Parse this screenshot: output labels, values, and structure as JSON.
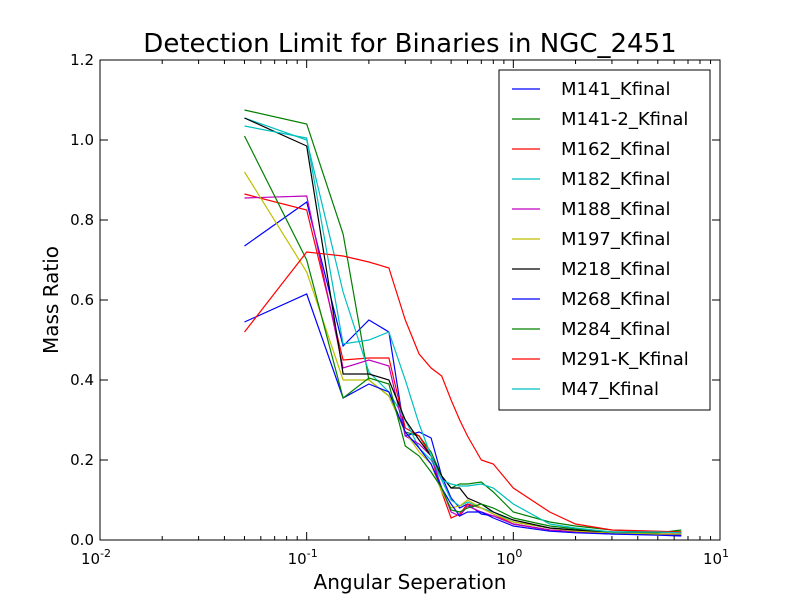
{
  "chart_data": {
    "type": "line",
    "title": "Detection Limit for Binaries in NGC_2451",
    "xlabel": "Angular Seperation",
    "ylabel": "Mass Ratio",
    "xscale": "log",
    "xlim": [
      0.01,
      10
    ],
    "ylim": [
      0.0,
      1.2
    ],
    "x_tick_labels": [
      {
        "value": 0.01,
        "base": "10",
        "exp": "-2"
      },
      {
        "value": 0.1,
        "base": "10",
        "exp": "-1"
      },
      {
        "value": 1,
        "base": "10",
        "exp": "0"
      },
      {
        "value": 10,
        "base": "10",
        "exp": "1"
      }
    ],
    "y_ticks": [
      0.0,
      0.2,
      0.4,
      0.6,
      0.8,
      1.0,
      1.2
    ],
    "y_tick_labels": [
      "0.0",
      "0.2",
      "0.4",
      "0.6",
      "0.8",
      "1.0",
      "1.2"
    ],
    "legend_position": "top-right",
    "grid": false,
    "series": [
      {
        "name": "M141_Kfinal",
        "color": "#0000ff",
        "x": [
          0.05,
          0.1,
          0.15,
          0.2,
          0.25,
          0.3,
          0.35,
          0.4,
          0.45,
          0.5,
          0.55,
          0.6,
          0.7,
          0.8,
          1.0,
          1.5,
          2.0,
          3.0,
          5.0,
          6.5
        ],
        "y": [
          0.735,
          0.845,
          0.485,
          0.55,
          0.52,
          0.26,
          0.27,
          0.255,
          0.16,
          0.105,
          0.08,
          0.09,
          0.065,
          0.06,
          0.04,
          0.025,
          0.02,
          0.015,
          0.015,
          0.012
        ]
      },
      {
        "name": "M141-2_Kfinal",
        "color": "#008000",
        "x": [
          0.05,
          0.1,
          0.15,
          0.2,
          0.25,
          0.3,
          0.35,
          0.4,
          0.45,
          0.5,
          0.55,
          0.6,
          0.7,
          0.8,
          1.0,
          1.5,
          2.0,
          3.0,
          5.0,
          6.5
        ],
        "y": [
          1.075,
          1.04,
          0.765,
          0.4,
          0.36,
          0.27,
          0.26,
          0.22,
          0.16,
          0.13,
          0.14,
          0.14,
          0.145,
          0.12,
          0.07,
          0.045,
          0.035,
          0.025,
          0.02,
          0.02
        ]
      },
      {
        "name": "M162_Kfinal",
        "color": "#ff0000",
        "x": [
          0.05,
          0.1,
          0.15,
          0.2,
          0.25,
          0.3,
          0.35,
          0.4,
          0.45,
          0.5,
          0.55,
          0.6,
          0.7,
          0.8,
          1.0,
          1.5,
          2.0,
          3.0,
          5.0,
          6.5
        ],
        "y": [
          0.865,
          0.825,
          0.45,
          0.455,
          0.455,
          0.28,
          0.26,
          0.21,
          0.12,
          0.055,
          0.065,
          0.09,
          0.08,
          0.065,
          0.04,
          0.025,
          0.02,
          0.018,
          0.015,
          0.015
        ]
      },
      {
        "name": "M182_Kfinal",
        "color": "#00bfbf",
        "x": [
          0.05,
          0.1,
          0.15,
          0.2,
          0.25,
          0.3,
          0.35,
          0.4,
          0.45,
          0.5,
          0.55,
          0.6,
          0.7,
          0.8,
          1.0,
          1.5,
          2.0,
          3.0,
          5.0,
          6.5
        ],
        "y": [
          1.055,
          1.0,
          0.62,
          0.42,
          0.37,
          0.3,
          0.23,
          0.2,
          0.15,
          0.1,
          0.085,
          0.095,
          0.08,
          0.07,
          0.045,
          0.03,
          0.025,
          0.02,
          0.02,
          0.018
        ]
      },
      {
        "name": "M188_Kfinal",
        "color": "#bf00bf",
        "x": [
          0.05,
          0.1,
          0.15,
          0.2,
          0.25,
          0.3,
          0.35,
          0.4,
          0.45,
          0.5,
          0.55,
          0.6,
          0.7,
          0.8,
          1.0,
          1.5,
          2.0,
          3.0,
          5.0,
          6.5
        ],
        "y": [
          0.855,
          0.86,
          0.43,
          0.45,
          0.435,
          0.26,
          0.24,
          0.21,
          0.13,
          0.07,
          0.06,
          0.085,
          0.07,
          0.06,
          0.04,
          0.025,
          0.02,
          0.018,
          0.015,
          0.015
        ]
      },
      {
        "name": "M197_Kfinal",
        "color": "#bfbf00",
        "x": [
          0.05,
          0.1,
          0.15,
          0.2,
          0.25,
          0.3,
          0.35,
          0.4,
          0.45,
          0.5,
          0.55,
          0.6,
          0.7,
          0.8,
          1.0,
          1.5,
          2.0,
          3.0,
          5.0,
          6.5
        ],
        "y": [
          0.92,
          0.67,
          0.4,
          0.4,
          0.36,
          0.27,
          0.22,
          0.19,
          0.12,
          0.08,
          0.085,
          0.1,
          0.08,
          0.065,
          0.045,
          0.03,
          0.022,
          0.018,
          0.015,
          0.015
        ]
      },
      {
        "name": "M218_Kfinal",
        "color": "#000000",
        "x": [
          0.05,
          0.1,
          0.15,
          0.2,
          0.25,
          0.3,
          0.35,
          0.4,
          0.45,
          0.5,
          0.55,
          0.6,
          0.7,
          0.8,
          1.0,
          1.5,
          2.0,
          3.0,
          5.0,
          6.5
        ],
        "y": [
          1.055,
          0.985,
          0.415,
          0.415,
          0.4,
          0.3,
          0.25,
          0.21,
          0.16,
          0.13,
          0.13,
          0.105,
          0.09,
          0.07,
          0.05,
          0.03,
          0.025,
          0.02,
          0.02,
          0.02
        ]
      },
      {
        "name": "M268_Kfinal",
        "color": "#0000ff",
        "x": [
          0.05,
          0.1,
          0.15,
          0.2,
          0.25,
          0.3,
          0.35,
          0.4,
          0.45,
          0.5,
          0.55,
          0.6,
          0.7,
          0.8,
          1.0,
          1.5,
          2.0,
          3.0,
          5.0,
          6.5
        ],
        "y": [
          0.545,
          0.615,
          0.355,
          0.39,
          0.37,
          0.27,
          0.23,
          0.19,
          0.13,
          0.09,
          0.06,
          0.07,
          0.07,
          0.055,
          0.035,
          0.022,
          0.018,
          0.015,
          0.012,
          0.01
        ]
      },
      {
        "name": "M284_Kfinal",
        "color": "#008000",
        "x": [
          0.05,
          0.1,
          0.15,
          0.2,
          0.25,
          0.3,
          0.35,
          0.4,
          0.45,
          0.5,
          0.55,
          0.6,
          0.7,
          0.8,
          1.0,
          1.5,
          2.0,
          3.0,
          5.0,
          6.5
        ],
        "y": [
          1.01,
          0.7,
          0.355,
          0.405,
          0.39,
          0.235,
          0.21,
          0.17,
          0.13,
          0.075,
          0.07,
          0.08,
          0.09,
          0.08,
          0.055,
          0.035,
          0.028,
          0.02,
          0.018,
          0.025
        ]
      },
      {
        "name": "M291-K_Kfinal",
        "color": "#ff0000",
        "x": [
          0.05,
          0.1,
          0.15,
          0.2,
          0.25,
          0.3,
          0.35,
          0.4,
          0.45,
          0.5,
          0.55,
          0.6,
          0.7,
          0.8,
          1.0,
          1.5,
          2.0,
          3.0,
          5.0,
          6.5
        ],
        "y": [
          0.52,
          0.72,
          0.71,
          0.695,
          0.68,
          0.55,
          0.465,
          0.43,
          0.41,
          0.35,
          0.3,
          0.26,
          0.2,
          0.19,
          0.13,
          0.07,
          0.04,
          0.025,
          0.022,
          0.02
        ]
      },
      {
        "name": "M47_Kfinal",
        "color": "#00bfbf",
        "x": [
          0.05,
          0.1,
          0.15,
          0.2,
          0.25,
          0.3,
          0.35,
          0.4,
          0.45,
          0.5,
          0.55,
          0.6,
          0.7,
          0.8,
          1.0,
          1.5,
          2.0,
          3.0,
          5.0,
          6.5
        ],
        "y": [
          1.035,
          1.005,
          0.49,
          0.5,
          0.52,
          0.4,
          0.29,
          0.21,
          0.15,
          0.14,
          0.135,
          0.135,
          0.14,
          0.13,
          0.09,
          0.04,
          0.03,
          0.02,
          0.02,
          0.018
        ]
      }
    ]
  }
}
